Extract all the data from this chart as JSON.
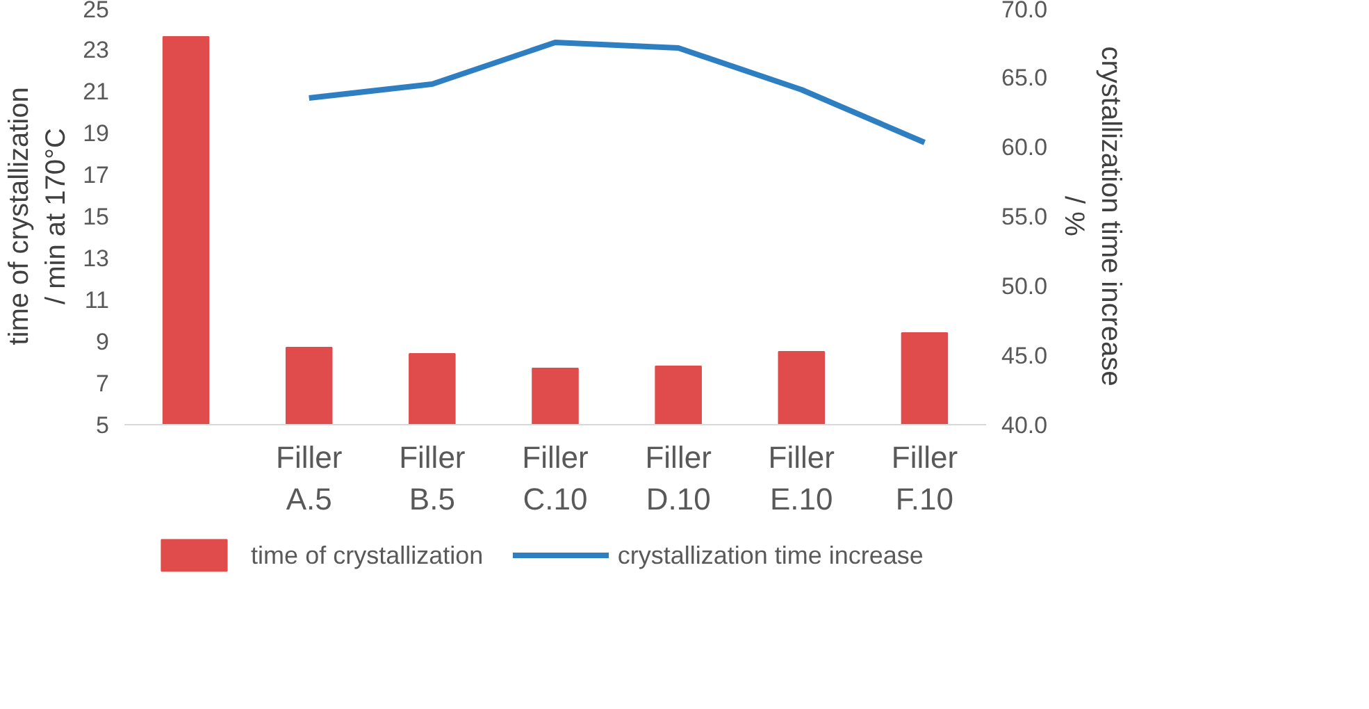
{
  "chart_data": {
    "type": "bar",
    "categories": [
      null,
      "Filler A.5",
      "Filler B.5",
      "Filler C.10",
      "Filler D.10",
      "Filler E.10",
      "Filler F.10"
    ],
    "ylabel": "time of crystallization / min at 170°C",
    "y2label": "crystallization time increase / %",
    "ylim": [
      5,
      25
    ],
    "yticks": [
      5,
      7,
      9,
      11,
      13,
      15,
      17,
      19,
      21,
      23,
      25
    ],
    "y2lim": [
      40,
      70
    ],
    "y2ticks": [
      {
        "value": 40,
        "label": "40.0"
      },
      {
        "value": 45,
        "label": "45.0"
      },
      {
        "value": 50,
        "label": "50.0"
      },
      {
        "value": 55,
        "label": "55.0"
      },
      {
        "value": 60,
        "label": "60.0"
      },
      {
        "value": 65,
        "label": "65.0"
      },
      {
        "value": 70,
        "label": "70.0"
      }
    ],
    "series": [
      {
        "name": "time of crystallization",
        "color": "#e04b4b",
        "values": [
          23.6,
          8.7,
          8.4,
          7.7,
          7.8,
          8.5,
          9.4
        ]
      },
      {
        "name": "crystallization time increase",
        "type": "line",
        "axis": "y2",
        "color": "#2e7fc1",
        "values": [
          null,
          63.5,
          64.5,
          67.5,
          67.1,
          64.1,
          60.3
        ]
      }
    ],
    "grid": false,
    "legend": "bottom",
    "marker": "none",
    "line_style": "solid"
  }
}
